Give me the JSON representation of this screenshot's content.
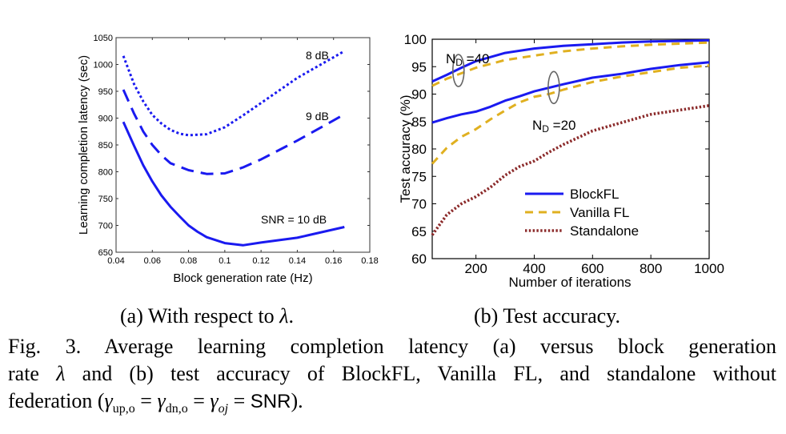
{
  "chart_data": [
    {
      "id": "a",
      "type": "line",
      "xlabel": "Block generation rate (Hz)",
      "ylabel": "Learning completion latency (sec)",
      "xlim": [
        0.04,
        0.18
      ],
      "ylim": [
        650,
        1050
      ],
      "xticks": [
        0.04,
        0.06,
        0.08,
        0.1,
        0.12,
        0.14,
        0.16,
        0.18
      ],
      "xticklabels": [
        "0.04",
        "0.06",
        "0.08",
        "0.1",
        "0.12",
        "0.14",
        "0.16",
        "0.18"
      ],
      "yticks": [
        650,
        700,
        750,
        800,
        850,
        900,
        950,
        1000,
        1050
      ],
      "yticklabels": [
        "650",
        "700",
        "750",
        "800",
        "850",
        "900",
        "950",
        "1000",
        "1050"
      ],
      "color": "#1a1af0",
      "series": [
        {
          "name": "SNR = 10 dB",
          "style": "solid",
          "x": [
            0.044,
            0.05,
            0.055,
            0.06,
            0.065,
            0.07,
            0.075,
            0.08,
            0.085,
            0.09,
            0.1,
            0.11,
            0.12,
            0.14,
            0.166
          ],
          "y": [
            893,
            848,
            812,
            782,
            756,
            735,
            717,
            700,
            688,
            678,
            667,
            663,
            668,
            677,
            697
          ]
        },
        {
          "name": "9 dB",
          "style": "dashed",
          "x": [
            0.044,
            0.05,
            0.055,
            0.06,
            0.065,
            0.07,
            0.08,
            0.09,
            0.1,
            0.11,
            0.12,
            0.14,
            0.166
          ],
          "y": [
            953,
            908,
            875,
            850,
            831,
            816,
            803,
            796,
            797,
            808,
            823,
            858,
            907
          ]
        },
        {
          "name": "8 dB",
          "style": "dotted",
          "x": [
            0.044,
            0.05,
            0.055,
            0.06,
            0.065,
            0.07,
            0.075,
            0.08,
            0.09,
            0.1,
            0.11,
            0.12,
            0.14,
            0.166
          ],
          "y": [
            1016,
            963,
            931,
            906,
            890,
            878,
            871,
            868,
            870,
            883,
            905,
            928,
            975,
            1025
          ]
        }
      ],
      "annotations": [
        "8 dB",
        "9 dB",
        "SNR = 10 dB"
      ]
    },
    {
      "id": "b",
      "type": "line",
      "xlabel": "Number of iterations",
      "ylabel": "Test accuracy (%)",
      "xlim": [
        50,
        1000
      ],
      "ylim": [
        60,
        100
      ],
      "xticks": [
        200,
        400,
        600,
        800,
        1000
      ],
      "xticklabels": [
        "200",
        "400",
        "600",
        "800",
        "1000"
      ],
      "yticks": [
        60,
        65,
        70,
        75,
        80,
        85,
        90,
        95,
        100
      ],
      "yticklabels": [
        "60",
        "65",
        "70",
        "75",
        "80",
        "85",
        "90",
        "95",
        "100"
      ],
      "legend": {
        "placement": "bottom-right",
        "entries": [
          {
            "label": "BlockFL",
            "color": "#1a1af0",
            "style": "solid"
          },
          {
            "label": "Vanilla FL",
            "color": "#e0b020",
            "style": "dashed"
          },
          {
            "label": "Standalone",
            "color": "#8b2a2a",
            "style": "dotted"
          }
        ]
      },
      "group_labels": [
        {
          "text": "N",
          "sub": "D",
          "suffix": " =40"
        },
        {
          "text": "N",
          "sub": "D",
          "suffix": " =20"
        }
      ],
      "series": [
        {
          "name": "BlockFL (N_D=40)",
          "color": "#1a1af0",
          "style": "solid",
          "x": [
            50,
            100,
            150,
            200,
            300,
            400,
            500,
            600,
            700,
            800,
            900,
            1000
          ],
          "y": [
            92.3,
            93.5,
            94.8,
            96.0,
            97.5,
            98.3,
            98.8,
            99.1,
            99.4,
            99.6,
            99.7,
            99.8
          ]
        },
        {
          "name": "Vanilla FL (N_D=40)",
          "color": "#e0b020",
          "style": "dashed",
          "x": [
            50,
            100,
            150,
            200,
            300,
            400,
            500,
            600,
            700,
            800,
            900,
            1000
          ],
          "y": [
            91.5,
            92.8,
            93.8,
            94.8,
            96.2,
            97.0,
            97.8,
            98.3,
            98.7,
            99.0,
            99.2,
            99.4
          ]
        },
        {
          "name": "BlockFL (N_D=20)",
          "color": "#1a1af0",
          "style": "solid",
          "x": [
            50,
            100,
            150,
            200,
            250,
            300,
            350,
            400,
            500,
            600,
            700,
            800,
            900,
            1000
          ],
          "y": [
            84.8,
            85.6,
            86.3,
            86.8,
            87.7,
            88.8,
            89.6,
            90.5,
            91.8,
            93.0,
            93.7,
            94.6,
            95.3,
            95.8
          ]
        },
        {
          "name": "Vanilla FL (N_D=20)",
          "color": "#e0b020",
          "style": "dashed",
          "x": [
            50,
            100,
            150,
            200,
            250,
            300,
            350,
            400,
            450,
            500,
            600,
            700,
            800,
            900,
            1000
          ],
          "y": [
            77.3,
            80.2,
            82.2,
            83.6,
            85.4,
            87.0,
            88.5,
            89.5,
            90.0,
            90.8,
            92.2,
            93.2,
            94.0,
            94.8,
            95.2
          ]
        },
        {
          "name": "Standalone",
          "color": "#8b2a2a",
          "style": "dotted",
          "x": [
            50,
            100,
            150,
            200,
            250,
            300,
            350,
            400,
            450,
            500,
            600,
            700,
            800,
            900,
            1000
          ],
          "y": [
            64.3,
            68.0,
            70.0,
            71.3,
            73.0,
            75.2,
            76.8,
            77.8,
            79.4,
            80.8,
            83.3,
            84.8,
            86.3,
            87.1,
            87.9
          ]
        }
      ]
    }
  ],
  "captions": {
    "sub_a_prefix": "(a)  With respect to ",
    "sub_a_symbol": "λ",
    "sub_a_suffix": ".",
    "sub_b": "(b)  Test accuracy.",
    "fig_line1": "Fig. 3.   Average learning completion latency (a) versus block generation",
    "fig_line2_pre": "rate ",
    "fig_line2_sym": "λ",
    "fig_line2_post": " and (b) test accuracy of BlockFL, Vanilla FL, and standalone without",
    "fig_line3_pre": "federation (",
    "fig_line3_math": "γ",
    "fig_line3_sub1": "up,o",
    "fig_line3_eq": " = ",
    "fig_line3_sub2": "dn,o",
    "fig_line3_sub3": "oj",
    "fig_line3_snr": "SNR",
    "fig_line3_end": ")."
  }
}
